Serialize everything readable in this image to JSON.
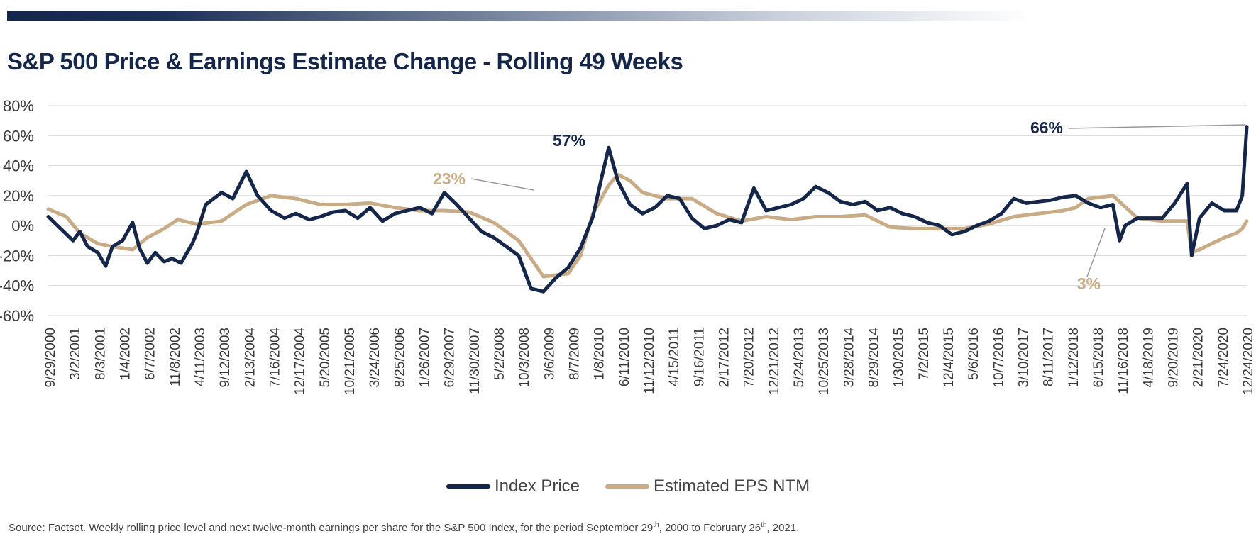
{
  "title": "S&P 500 Price & Earnings Estimate Change - Rolling 49 Weeks",
  "chart_data": {
    "type": "line",
    "title": "S&P 500 Price & Earnings Estimate Change - Rolling 49 Weeks",
    "xlabel": "",
    "ylabel": "",
    "x_range": [
      "2000-09-29",
      "2021-02-26"
    ],
    "ylim": [
      -60,
      80
    ],
    "y_ticks": [
      "80%",
      "60%",
      "40%",
      "20%",
      "0%",
      "-20%",
      "-40%",
      "-60%"
    ],
    "x_ticks": [
      "9/29/2000",
      "3/2/2001",
      "8/3/2001",
      "1/4/2002",
      "6/7/2002",
      "11/8/2002",
      "4/11/2003",
      "9/12/2003",
      "2/13/2004",
      "7/16/2004",
      "12/17/2004",
      "5/20/2005",
      "10/21/2005",
      "3/24/2006",
      "8/25/2006",
      "1/26/2007",
      "6/29/2007",
      "11/30/2007",
      "5/2/2008",
      "10/3/2008",
      "3/6/2009",
      "8/7/2009",
      "1/8/2010",
      "6/11/2010",
      "11/12/2010",
      "4/15/2011",
      "9/16/2011",
      "2/17/2012",
      "7/20/2012",
      "12/21/2012",
      "5/24/2013",
      "10/25/2013",
      "3/28/2014",
      "8/29/2014",
      "1/30/2015",
      "7/2/2015",
      "12/4/2015",
      "5/6/2016",
      "10/7/2016",
      "3/10/2017",
      "8/11/2017",
      "1/12/2018",
      "6/15/2018",
      "11/16/2018",
      "4/18/2019",
      "9/20/2019",
      "2/21/2020",
      "7/24/2020",
      "12/24/2020"
    ],
    "grid": "horizontal",
    "legend_position": "bottom",
    "series": [
      {
        "name": "Index Price",
        "color": "#14264a",
        "x": [
          "2000-09-29",
          "2000-12-15",
          "2001-03-02",
          "2001-04-13",
          "2001-06-01",
          "2001-08-03",
          "2001-09-21",
          "2001-11-02",
          "2002-01-04",
          "2002-03-08",
          "2002-04-19",
          "2002-06-07",
          "2002-07-26",
          "2002-09-20",
          "2002-11-08",
          "2003-01-03",
          "2003-03-14",
          "2003-04-11",
          "2003-06-06",
          "2003-09-12",
          "2003-11-21",
          "2004-02-13",
          "2004-04-23",
          "2004-07-16",
          "2004-10-08",
          "2004-12-17",
          "2005-03-11",
          "2005-05-20",
          "2005-08-05",
          "2005-10-21",
          "2006-01-06",
          "2006-03-24",
          "2006-06-09",
          "2006-08-25",
          "2006-11-10",
          "2007-01-26",
          "2007-04-13",
          "2007-06-29",
          "2007-09-14",
          "2007-11-30",
          "2008-02-15",
          "2008-05-02",
          "2008-07-18",
          "2008-10-03",
          "2008-12-19",
          "2009-03-06",
          "2009-05-22",
          "2009-08-07",
          "2009-10-23",
          "2010-01-08",
          "2010-03-05",
          "2010-04-16",
          "2010-06-11",
          "2010-08-27",
          "2010-11-12",
          "2011-01-28",
          "2011-04-15",
          "2011-07-01",
          "2011-09-16",
          "2011-12-02",
          "2012-02-17",
          "2012-05-04",
          "2012-07-20",
          "2012-10-05",
          "2012-12-21",
          "2013-03-08",
          "2013-05-24",
          "2013-08-09",
          "2013-10-25",
          "2014-01-10",
          "2014-03-28",
          "2014-06-13",
          "2014-08-29",
          "2014-11-14",
          "2015-01-30",
          "2015-04-17",
          "2015-07-02",
          "2015-09-18",
          "2015-12-04",
          "2016-02-19",
          "2016-05-06",
          "2016-07-22",
          "2016-10-07",
          "2016-12-23",
          "2017-03-10",
          "2017-05-26",
          "2017-08-11",
          "2017-10-27",
          "2018-01-12",
          "2018-03-30",
          "2018-06-15",
          "2018-08-31",
          "2018-11-16",
          "2018-12-28",
          "2019-02-01",
          "2019-04-18",
          "2019-07-05",
          "2019-09-20",
          "2019-12-06",
          "2020-02-21",
          "2020-03-20",
          "2020-05-08",
          "2020-07-24",
          "2020-10-09",
          "2020-12-24",
          "2021-01-29",
          "2021-02-26"
        ],
        "y": [
          6,
          -2,
          -10,
          -4,
          -14,
          -18,
          -27,
          -14,
          -10,
          2,
          -15,
          -25,
          -18,
          -24,
          -22,
          -25,
          -12,
          -5,
          14,
          22,
          18,
          36,
          20,
          10,
          5,
          8,
          4,
          6,
          9,
          10,
          5,
          12,
          3,
          8,
          10,
          12,
          8,
          22,
          14,
          5,
          -4,
          -8,
          -14,
          -20,
          -42,
          -44,
          -35,
          -28,
          -15,
          6,
          33,
          52,
          30,
          14,
          8,
          12,
          20,
          18,
          5,
          -2,
          0,
          4,
          2,
          25,
          10,
          12,
          14,
          18,
          26,
          22,
          16,
          14,
          16,
          10,
          12,
          8,
          6,
          2,
          0,
          -6,
          -4,
          0,
          3,
          8,
          18,
          15,
          16,
          17,
          19,
          20,
          15,
          12,
          14,
          -10,
          0,
          5,
          5,
          5,
          15,
          28,
          -20,
          5,
          15,
          10,
          10,
          20,
          66
        ]
      },
      {
        "name": "Estimated EPS NTM",
        "color": "#c9ac86",
        "x": [
          "2000-09-29",
          "2001-01-19",
          "2001-04-13",
          "2001-08-03",
          "2001-11-02",
          "2002-03-08",
          "2002-06-07",
          "2002-09-20",
          "2002-12-13",
          "2003-04-11",
          "2003-09-12",
          "2004-02-13",
          "2004-07-16",
          "2004-12-17",
          "2005-05-20",
          "2005-10-21",
          "2006-03-24",
          "2006-08-25",
          "2007-01-26",
          "2007-06-29",
          "2007-11-30",
          "2008-05-02",
          "2008-10-03",
          "2009-03-06",
          "2009-08-07",
          "2009-10-23",
          "2010-01-08",
          "2010-04-16",
          "2010-06-11",
          "2010-08-27",
          "2010-11-12",
          "2011-01-28",
          "2011-04-15",
          "2011-09-16",
          "2012-02-17",
          "2012-07-20",
          "2012-12-21",
          "2013-05-24",
          "2013-10-25",
          "2014-03-28",
          "2014-08-29",
          "2015-01-30",
          "2015-07-02",
          "2015-12-04",
          "2016-05-06",
          "2016-10-07",
          "2017-03-10",
          "2017-08-11",
          "2018-01-12",
          "2018-03-30",
          "2018-06-15",
          "2018-11-16",
          "2019-04-18",
          "2019-09-20",
          "2020-02-21",
          "2020-03-20",
          "2020-05-08",
          "2020-07-24",
          "2020-10-09",
          "2020-12-24",
          "2021-01-29",
          "2021-02-26"
        ],
        "y": [
          11,
          6,
          -5,
          -12,
          -14,
          -16,
          -8,
          -2,
          4,
          1,
          3,
          14,
          20,
          18,
          14,
          14,
          15,
          12,
          10,
          10,
          9,
          2,
          -10,
          -34,
          -32,
          -20,
          8,
          27,
          34,
          30,
          22,
          20,
          18,
          18,
          8,
          3,
          6,
          4,
          6,
          6,
          7,
          -1,
          -2,
          -2,
          -2,
          1,
          6,
          8,
          10,
          12,
          18,
          20,
          5,
          3,
          3,
          -18,
          -16,
          -12,
          -8,
          -5,
          -2,
          3
        ]
      }
    ],
    "annotations": [
      {
        "text": "57%",
        "series": "Index Price"
      },
      {
        "text": "23%",
        "series": "Estimated EPS NTM"
      },
      {
        "text": "66%",
        "series": "Index Price"
      },
      {
        "text": "3%",
        "series": "Estimated EPS NTM"
      }
    ]
  },
  "source_note": {
    "part1": "Source: Factset. Weekly rolling price level and next twelve-month earnings per share for the S&P 500 Index, for the period September 29",
    "sup1": "th",
    "part2": ", 2000 to February 26",
    "sup2": "th",
    "part3": ", 2021."
  }
}
